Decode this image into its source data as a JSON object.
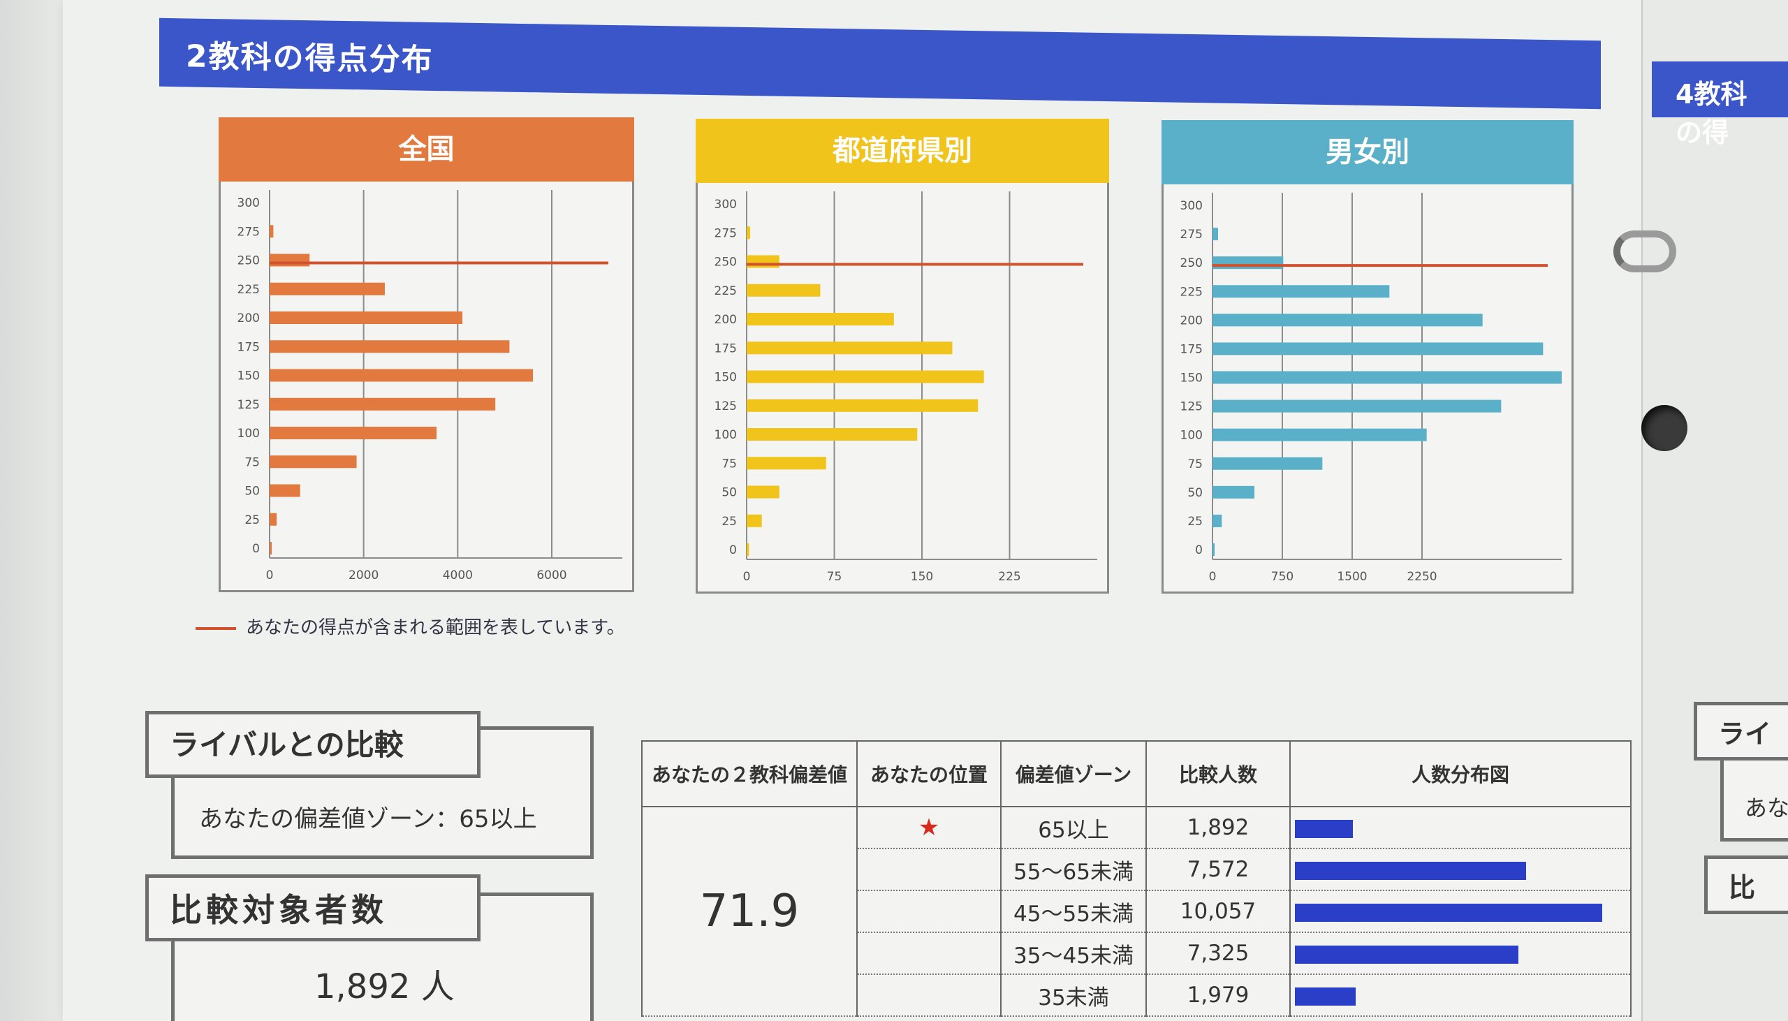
{
  "section": {
    "title": "2教科の得点分布",
    "next_title": "4教科の得"
  },
  "legend_note": "あなたの得点が含まれる範囲を表しています。",
  "colors": {
    "national": "#e27a3f",
    "prefecture": "#f0c41b",
    "gender": "#5ab0c8",
    "marker": "#d2522e",
    "banner": "#3a56c8"
  },
  "chart_data": [
    {
      "type": "bar",
      "orientation": "horizontal",
      "title": "全国",
      "categories": [
        0,
        25,
        50,
        75,
        100,
        125,
        150,
        175,
        200,
        225,
        250,
        275,
        300
      ],
      "values": [
        20,
        150,
        650,
        1850,
        3550,
        4800,
        5600,
        5100,
        4100,
        2450,
        850,
        80,
        0
      ],
      "xticks": [
        0,
        2000,
        4000,
        6000
      ],
      "xlim": [
        0,
        7500
      ],
      "highlight_category": 250
    },
    {
      "type": "bar",
      "orientation": "horizontal",
      "title": "都道府県別",
      "categories": [
        0,
        25,
        50,
        75,
        100,
        125,
        150,
        175,
        200,
        225,
        250,
        275,
        300
      ],
      "values": [
        2,
        13,
        28,
        68,
        146,
        198,
        203,
        176,
        126,
        63,
        28,
        3,
        0
      ],
      "xticks": [
        0,
        75,
        150,
        225
      ],
      "xlim": [
        0,
        300
      ],
      "highlight_category": 250
    },
    {
      "type": "bar",
      "orientation": "horizontal",
      "title": "男女別",
      "categories": [
        0,
        25,
        50,
        75,
        100,
        125,
        150,
        175,
        200,
        225,
        250,
        275,
        300
      ],
      "values": [
        20,
        100,
        450,
        1180,
        2300,
        3100,
        3750,
        3550,
        2900,
        1900,
        760,
        60,
        0
      ],
      "xticks": [
        0,
        750,
        1500,
        2250
      ],
      "xlim": [
        0,
        3750
      ],
      "highlight_category": 250
    }
  ],
  "rival": {
    "title": "ライバルとの比較",
    "zone_text": "あなたの偏差値ゾーン：65以上"
  },
  "compare_count": {
    "title": "比較対象者数",
    "value": "1,892 人"
  },
  "table": {
    "headers": [
      "あなたの２教科偏差値",
      "あなたの位置",
      "偏差値ゾーン",
      "比較人数",
      "人数分布図"
    ],
    "deviation": "71.9",
    "rows": [
      {
        "position": "★",
        "zone": "65以上",
        "count": "1,892",
        "share": 0.188
      },
      {
        "position": "",
        "zone": "55～65未満",
        "count": "7,572",
        "share": 0.753
      },
      {
        "position": "",
        "zone": "45～55未満",
        "count": "10,057",
        "share": 1.0
      },
      {
        "position": "",
        "zone": "35～45未満",
        "count": "7,325",
        "share": 0.728
      },
      {
        "position": "",
        "zone": "35未満",
        "count": "1,979",
        "share": 0.197
      }
    ]
  },
  "right_page": {
    "rival_title": "ライ",
    "zone_text": "あな",
    "compare_title": "比"
  }
}
